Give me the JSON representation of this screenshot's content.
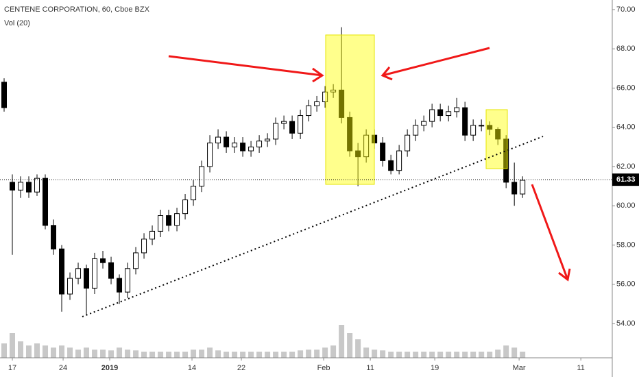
{
  "chart_data": {
    "type": "candlestick",
    "title": "CENTENE CORPORATION, 60, Cboe BZX",
    "subtitle": "Vol (20)",
    "candles": [
      [
        66.3,
        66.5,
        64.8,
        65.0
      ],
      [
        61.2,
        61.6,
        57.5,
        60.8
      ],
      [
        60.8,
        61.5,
        60.4,
        61.2
      ],
      [
        61.2,
        61.5,
        60.4,
        60.7
      ],
      [
        60.7,
        61.6,
        60.5,
        61.4
      ],
      [
        61.4,
        61.6,
        58.8,
        59.0
      ],
      [
        59.0,
        59.3,
        57.5,
        57.8
      ],
      [
        57.8,
        58.0,
        54.6,
        55.5
      ],
      [
        55.5,
        56.6,
        55.2,
        56.3
      ],
      [
        56.3,
        57.1,
        56.0,
        56.8
      ],
      [
        56.8,
        57.0,
        54.4,
        55.8
      ],
      [
        55.8,
        57.6,
        55.5,
        57.3
      ],
      [
        57.3,
        57.7,
        56.8,
        57.1
      ],
      [
        57.1,
        57.4,
        56.0,
        56.3
      ],
      [
        56.3,
        56.5,
        55.0,
        55.6
      ],
      [
        55.6,
        57.1,
        55.3,
        56.8
      ],
      [
        56.8,
        57.9,
        56.5,
        57.6
      ],
      [
        57.6,
        58.6,
        57.3,
        58.3
      ],
      [
        58.3,
        59.0,
        58.0,
        58.7
      ],
      [
        58.7,
        59.8,
        58.4,
        59.5
      ],
      [
        59.5,
        59.8,
        58.7,
        59.0
      ],
      [
        59.0,
        59.9,
        58.7,
        59.6
      ],
      [
        59.6,
        60.6,
        59.3,
        60.3
      ],
      [
        60.3,
        61.3,
        60.0,
        61.0
      ],
      [
        61.0,
        62.3,
        60.7,
        62.0
      ],
      [
        62.0,
        63.6,
        61.7,
        63.2
      ],
      [
        63.2,
        63.9,
        62.9,
        63.5
      ],
      [
        63.5,
        63.8,
        62.7,
        63.0
      ],
      [
        63.0,
        63.5,
        62.7,
        63.2
      ],
      [
        63.2,
        63.5,
        62.5,
        62.8
      ],
      [
        62.8,
        63.3,
        62.5,
        63.0
      ],
      [
        63.0,
        63.6,
        62.7,
        63.3
      ],
      [
        63.3,
        63.7,
        63.0,
        63.4
      ],
      [
        63.4,
        64.5,
        63.1,
        64.2
      ],
      [
        64.2,
        64.6,
        63.9,
        64.3
      ],
      [
        64.3,
        64.6,
        63.4,
        63.7
      ],
      [
        63.7,
        64.9,
        63.4,
        64.6
      ],
      [
        64.6,
        65.4,
        64.3,
        65.1
      ],
      [
        65.1,
        65.6,
        64.8,
        65.3
      ],
      [
        65.3,
        66.1,
        65.0,
        65.8
      ],
      [
        65.8,
        66.2,
        65.5,
        65.9
      ],
      [
        65.9,
        69.1,
        64.2,
        64.5
      ],
      [
        64.5,
        64.8,
        62.5,
        62.8
      ],
      [
        62.8,
        63.2,
        61.0,
        62.5
      ],
      [
        62.5,
        63.9,
        62.2,
        63.6
      ],
      [
        63.6,
        63.9,
        62.9,
        63.2
      ],
      [
        63.2,
        63.5,
        62.0,
        62.3
      ],
      [
        62.3,
        62.6,
        61.6,
        61.8
      ],
      [
        61.8,
        63.1,
        61.6,
        62.8
      ],
      [
        62.8,
        63.9,
        62.5,
        63.6
      ],
      [
        63.6,
        64.4,
        63.3,
        64.1
      ],
      [
        64.1,
        64.6,
        63.8,
        64.3
      ],
      [
        64.3,
        65.2,
        64.0,
        64.9
      ],
      [
        64.9,
        65.2,
        64.3,
        64.6
      ],
      [
        64.6,
        65.1,
        64.3,
        64.8
      ],
      [
        64.8,
        65.5,
        64.5,
        65.0
      ],
      [
        65.0,
        65.3,
        63.3,
        63.6
      ],
      [
        63.6,
        64.4,
        63.3,
        64.1
      ],
      [
        64.1,
        64.4,
        63.8,
        64.1
      ],
      [
        64.1,
        64.3,
        63.6,
        63.9
      ],
      [
        63.9,
        64.0,
        63.1,
        63.4
      ],
      [
        63.4,
        63.6,
        60.9,
        61.2
      ],
      [
        61.2,
        62.2,
        60.0,
        60.6
      ],
      [
        60.6,
        61.5,
        60.4,
        61.3
      ]
    ],
    "volume": [
      35,
      60,
      40,
      30,
      35,
      30,
      25,
      30,
      25,
      20,
      25,
      20,
      20,
      18,
      25,
      20,
      18,
      15,
      15,
      15,
      15,
      15,
      15,
      20,
      20,
      25,
      18,
      15,
      15,
      15,
      15,
      15,
      15,
      15,
      15,
      15,
      18,
      20,
      20,
      25,
      30,
      80,
      60,
      45,
      25,
      20,
      18,
      15,
      15,
      15,
      15,
      15,
      15,
      15,
      15,
      15,
      15,
      15,
      15,
      15,
      20,
      30,
      25,
      15
    ],
    "last_price": 61.33,
    "xlim": [
      -0.5,
      73.9
    ],
    "xticks": [
      {
        "value": 1,
        "label": "17"
      },
      {
        "value": 7.17,
        "label": "24"
      },
      {
        "value": 12.83,
        "label": "2019"
      },
      {
        "value": 22.83,
        "label": "14"
      },
      {
        "value": 28.83,
        "label": "22"
      },
      {
        "value": 38.83,
        "label": "Feb"
      },
      {
        "value": 44.5,
        "label": "11"
      },
      {
        "value": 52.33,
        "label": "19"
      },
      {
        "value": 62.58,
        "label": "Mar"
      },
      {
        "value": 70.08,
        "label": "11"
      }
    ],
    "ylim": [
      52.25,
      70.49
    ],
    "yticks": [
      {
        "value": 54,
        "label": "54.00"
      },
      {
        "value": 56,
        "label": "56.00"
      },
      {
        "value": 58,
        "label": "58.00"
      },
      {
        "value": 60,
        "label": "60.00"
      },
      {
        "value": 62,
        "label": "62.00"
      },
      {
        "value": 64,
        "label": "64.00"
      },
      {
        "value": 66,
        "label": "66.00"
      },
      {
        "value": 68,
        "label": "68.00"
      },
      {
        "value": 70,
        "label": "70.00"
      }
    ],
    "up_color": "#ffffff",
    "down_color": "#000000",
    "volume_color": "#c8c8c8"
  }
}
